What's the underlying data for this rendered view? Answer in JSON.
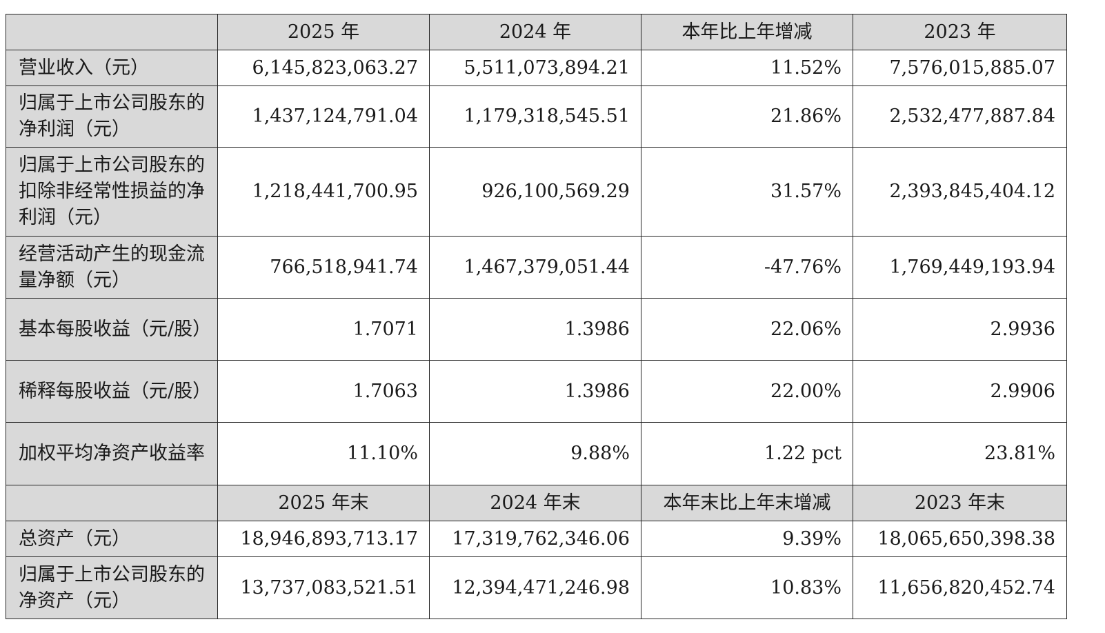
{
  "header1": [
    "",
    "2025 年",
    "2024 年",
    "本年比上年增减",
    "2023 年"
  ],
  "rows1": [
    {
      "label": "营业收入（元）",
      "values": [
        "6,145,823,063.27",
        "5,511,073,894.21",
        "11.52%",
        "7,576,015,885.07"
      ]
    },
    {
      "label": "归属于上市公司股东的净利润（元）",
      "values": [
        "1,437,124,791.04",
        "1,179,318,545.51",
        "21.86%",
        "2,532,477,887.84"
      ]
    },
    {
      "label": "归属于上市公司股东的扣除非经常性损益的净利润（元）",
      "values": [
        "1,218,441,700.95",
        "926,100,569.29",
        "31.57%",
        "2,393,845,404.12"
      ]
    },
    {
      "label": "经营活动产生的现金流量净额（元）",
      "values": [
        "766,518,941.74",
        "1,467,379,051.44",
        "-47.76%",
        "1,769,449,193.94"
      ]
    },
    {
      "label": "基本每股收益（元/股）",
      "values": [
        "1.7071",
        "1.3986",
        "22.06%",
        "2.9936"
      ]
    },
    {
      "label": "稀释每股收益（元/股）",
      "values": [
        "1.7063",
        "1.3986",
        "22.00%",
        "2.9906"
      ]
    },
    {
      "label": "加权平均净资产收益率",
      "values": [
        "11.10%",
        "9.88%",
        "1.22 pct",
        "23.81%"
      ]
    }
  ],
  "header2": [
    "",
    "2025 年末",
    "2024 年末",
    "本年末比上年末增减",
    "2023 年末"
  ],
  "rows2": [
    {
      "label": "总资产（元）",
      "values": [
        "18,946,893,713.17",
        "17,319,762,346.06",
        "9.39%",
        "18,065,650,398.38"
      ]
    },
    {
      "label": "归属于上市公司股东的净资产（元）",
      "values": [
        "13,737,083,521.51",
        "12,394,471,246.98",
        "10.83%",
        "11,656,820,452.74"
      ]
    }
  ]
}
